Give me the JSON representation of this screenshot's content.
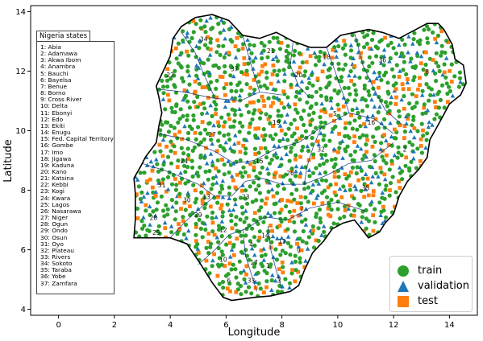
{
  "colors": {
    "train": "#2ca02c",
    "validation": "#1f77b4",
    "test": "#ff7f0e",
    "boundary": "#0d2a7a",
    "outline": "#000000"
  },
  "axes": {
    "xlabel": "Longitude",
    "ylabel": "Latitude",
    "xlim": [
      -1,
      15
    ],
    "ylim": [
      3.8,
      14.2
    ],
    "xticks": [
      "0",
      "2",
      "4",
      "6",
      "8",
      "10",
      "12",
      "14"
    ],
    "yticks": [
      "4",
      "6",
      "8",
      "10",
      "12",
      "14"
    ]
  },
  "states_title": "Nigeria states",
  "states": [
    "1: Abia",
    "2: Adamawa",
    "3: Akwa Ibom",
    "4: Anambra",
    "5: Bauchi",
    "6: Bayelsa",
    "7: Benue",
    "8: Borno",
    "9: Cross River",
    "10: Delta",
    "11: Ebonyi",
    "12: Edo",
    "13: Ekiti",
    "14: Enugu",
    "15: Fed. Capital Territory",
    "16: Gombe",
    "17: Imo",
    "18: Jigawa",
    "19: Kaduna",
    "20: Kano",
    "21: Katsina",
    "22: Kebbi",
    "23: Kogi",
    "24: Kwara",
    "25: Lagos",
    "26: Nasarawa",
    "27: Niger",
    "28: Ogun",
    "29: Ondo",
    "30: Osun",
    "31: Oyo",
    "32: Plateau",
    "33: Rivers",
    "34: Sokoto",
    "35: Taraba",
    "36: Yobe",
    "37: Zamfara"
  ],
  "map_labels": [
    {
      "n": "1",
      "lon": 7.5,
      "lat": 5.4
    },
    {
      "n": "2",
      "lon": 12.4,
      "lat": 9.3
    },
    {
      "n": "3",
      "lon": 7.9,
      "lat": 4.9
    },
    {
      "n": "4",
      "lon": 6.9,
      "lat": 6.1
    },
    {
      "n": "5",
      "lon": 9.9,
      "lat": 10.5
    },
    {
      "n": "6",
      "lon": 6.1,
      "lat": 4.9
    },
    {
      "n": "7",
      "lon": 8.7,
      "lat": 7.3
    },
    {
      "n": "8",
      "lon": 13.2,
      "lat": 11.9
    },
    {
      "n": "9",
      "lon": 8.6,
      "lat": 5.9
    },
    {
      "n": "10",
      "lon": 5.9,
      "lat": 5.6
    },
    {
      "n": "11",
      "lon": 8.0,
      "lat": 6.2
    },
    {
      "n": "12",
      "lon": 5.9,
      "lat": 6.6
    },
    {
      "n": "13",
      "lon": 5.3,
      "lat": 7.7
    },
    {
      "n": "14",
      "lon": 7.4,
      "lat": 6.4
    },
    {
      "n": "15",
      "lon": 7.2,
      "lat": 8.9
    },
    {
      "n": "16",
      "lon": 11.2,
      "lat": 10.2
    },
    {
      "n": "17",
      "lon": 7.0,
      "lat": 5.5
    },
    {
      "n": "18",
      "lon": 9.6,
      "lat": 12.4
    },
    {
      "n": "19",
      "lon": 7.8,
      "lat": 10.2
    },
    {
      "n": "20",
      "lon": 8.6,
      "lat": 11.8
    },
    {
      "n": "21",
      "lon": 7.6,
      "lat": 12.6
    },
    {
      "n": "22",
      "lon": 4.0,
      "lat": 11.8
    },
    {
      "n": "23",
      "lon": 6.7,
      "lat": 7.7
    },
    {
      "n": "24",
      "lon": 4.5,
      "lat": 8.9
    },
    {
      "n": "25",
      "lon": 3.5,
      "lat": 6.5
    },
    {
      "n": "26",
      "lon": 8.3,
      "lat": 8.5
    },
    {
      "n": "27",
      "lon": 5.5,
      "lat": 9.8
    },
    {
      "n": "28",
      "lon": 3.4,
      "lat": 7.0
    },
    {
      "n": "29",
      "lon": 5.0,
      "lat": 7.1
    },
    {
      "n": "30",
      "lon": 4.6,
      "lat": 7.6
    },
    {
      "n": "31",
      "lon": 3.7,
      "lat": 8.1
    },
    {
      "n": "32",
      "lon": 9.4,
      "lat": 9.3
    },
    {
      "n": "33",
      "lon": 6.9,
      "lat": 4.9
    },
    {
      "n": "34",
      "lon": 5.2,
      "lat": 13.0
    },
    {
      "n": "35",
      "lon": 11.0,
      "lat": 8.0
    },
    {
      "n": "36",
      "lon": 11.6,
      "lat": 12.3
    },
    {
      "n": "37",
      "lon": 6.3,
      "lat": 12.0
    }
  ],
  "legend": {
    "train": "train",
    "validation": "validation",
    "test": "test"
  }
}
